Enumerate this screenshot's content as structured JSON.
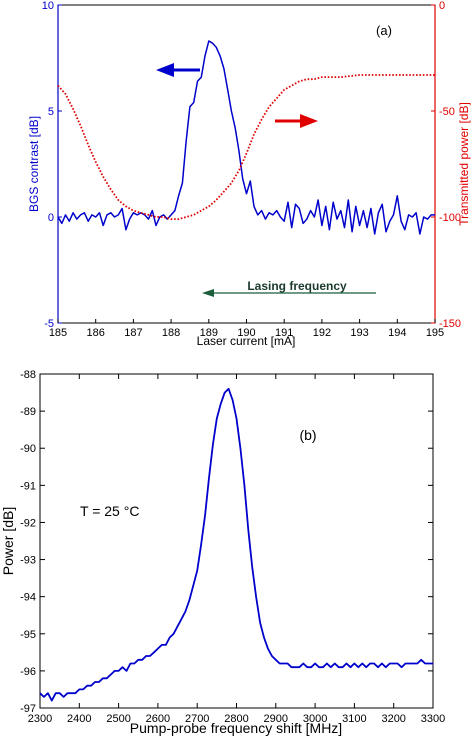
{
  "chart_data": [
    {
      "type": "line",
      "panel_label": "(a)",
      "xlabel": "Laser current [mA]",
      "xlim": [
        185,
        195
      ],
      "xticks": [
        "185",
        "186",
        "187",
        "188",
        "189",
        "190",
        "191",
        "192",
        "193",
        "194",
        "195"
      ],
      "ylabel_left": "BGS contrast [dB]",
      "ylim_left": [
        -5,
        10
      ],
      "yticks_left": [
        "-5",
        "0",
        "5",
        "10"
      ],
      "ylabel_right": "Transmitted power [dB]",
      "ylim_right": [
        -150,
        0
      ],
      "yticks_right": [
        "-150",
        "-100",
        "-50",
        "0"
      ],
      "annotation": "Lasing frequency",
      "colors": {
        "left": "#0000cc",
        "right": "#e00000",
        "lasing": "#1b5e3b"
      },
      "series": [
        {
          "axis": "left",
          "style": "solid",
          "x": [
            185.0,
            185.1,
            185.2,
            185.3,
            185.4,
            185.5,
            185.6,
            185.7,
            185.8,
            185.9,
            186.0,
            186.1,
            186.2,
            186.3,
            186.4,
            186.5,
            186.6,
            186.7,
            186.8,
            186.9,
            187.0,
            187.1,
            187.2,
            187.3,
            187.4,
            187.5,
            187.6,
            187.7,
            187.8,
            187.9,
            188.0,
            188.1,
            188.2,
            188.3,
            188.4,
            188.5,
            188.6,
            188.7,
            188.8,
            188.9,
            189.0,
            189.1,
            189.2,
            189.3,
            189.4,
            189.5,
            189.6,
            189.7,
            189.8,
            189.9,
            190.0,
            190.1,
            190.2,
            190.3,
            190.4,
            190.5,
            190.6,
            190.7,
            190.8,
            190.9,
            191.0,
            191.1,
            191.2,
            191.3,
            191.4,
            191.5,
            191.6,
            191.7,
            191.8,
            191.9,
            192.0,
            192.1,
            192.2,
            192.3,
            192.4,
            192.5,
            192.6,
            192.7,
            192.8,
            192.9,
            193.0,
            193.1,
            193.2,
            193.3,
            193.4,
            193.5,
            193.6,
            193.7,
            193.8,
            193.9,
            194.0,
            194.1,
            194.2,
            194.3,
            194.4,
            194.5,
            194.6,
            194.7,
            194.8,
            194.9,
            195.0
          ],
          "y": [
            0.0,
            -0.3,
            0.1,
            -0.2,
            0.2,
            -0.1,
            0.1,
            0.2,
            -0.2,
            0.1,
            0.0,
            0.2,
            -0.4,
            0.1,
            0.2,
            0.0,
            0.1,
            0.4,
            -0.6,
            -0.1,
            0.2,
            0.1,
            0.2,
            0.1,
            -0.1,
            0.3,
            -0.4,
            0.0,
            0.1,
            -0.1,
            0.1,
            0.3,
            1.0,
            1.6,
            3.6,
            5.2,
            5.4,
            6.4,
            6.6,
            7.6,
            8.3,
            8.2,
            8.0,
            7.6,
            7.0,
            6.0,
            5.0,
            4.2,
            3.1,
            1.8,
            1.1,
            1.7,
            0.5,
            0.1,
            0.3,
            -0.1,
            0.2,
            0.1,
            0.3,
            0.0,
            -0.2,
            0.7,
            -0.5,
            0.6,
            0.4,
            -0.3,
            -0.1,
            0.3,
            0.0,
            0.8,
            -0.4,
            0.5,
            -0.6,
            0.7,
            -0.1,
            0.3,
            -0.5,
            0.8,
            -0.7,
            0.5,
            -0.4,
            0.3,
            -0.5,
            0.4,
            -0.8,
            0.2,
            0.6,
            -0.7,
            -0.2,
            0.1,
            1.0,
            -0.2,
            -0.6,
            0.1,
            0.0,
            0.2,
            -0.8,
            0.0,
            -0.1,
            0.1,
            0.1
          ]
        },
        {
          "axis": "right",
          "style": "dotted",
          "x": [
            185.0,
            185.2,
            185.4,
            185.6,
            185.8,
            186.0,
            186.2,
            186.4,
            186.6,
            186.8,
            187.0,
            187.2,
            187.4,
            187.6,
            187.8,
            188.0,
            188.2,
            188.4,
            188.6,
            188.8,
            189.0,
            189.2,
            189.4,
            189.6,
            189.8,
            190.0,
            190.2,
            190.4,
            190.6,
            190.8,
            191.0,
            191.2,
            191.4,
            191.6,
            191.8,
            192.0,
            192.5,
            193.0,
            193.5,
            194.0,
            194.5,
            195.0
          ],
          "y": [
            -38,
            -42,
            -49,
            -57,
            -66,
            -74,
            -81,
            -87,
            -92,
            -95,
            -97,
            -98,
            -99,
            -100,
            -100,
            -101,
            -101,
            -100,
            -99,
            -97,
            -95,
            -92,
            -88,
            -84,
            -78,
            -70,
            -61,
            -54,
            -48,
            -44,
            -40,
            -38,
            -36,
            -35,
            -35,
            -34,
            -34,
            -33,
            -33,
            -33,
            -33,
            -33
          ]
        }
      ]
    },
    {
      "type": "line",
      "panel_label": "(b)",
      "annotation": "T = 25 °C",
      "xlabel": "Pump-probe frequency shift  [MHz]",
      "xlim": [
        2300,
        3300
      ],
      "xticks": [
        "2300",
        "2400",
        "2500",
        "2600",
        "2700",
        "2800",
        "2900",
        "3000",
        "3100",
        "3200",
        "3300"
      ],
      "ylabel": "Power  [dB]",
      "ylim": [
        -97,
        -88
      ],
      "yticks": [
        "-88",
        "-89",
        "-90",
        "-91",
        "-92",
        "-93",
        "-94",
        "-95",
        "-96",
        "-97"
      ],
      "colors": {
        "line": "#0000cc"
      },
      "series": [
        {
          "x": [
            2300,
            2310,
            2320,
            2330,
            2340,
            2350,
            2360,
            2370,
            2380,
            2390,
            2400,
            2410,
            2420,
            2430,
            2440,
            2450,
            2460,
            2470,
            2480,
            2490,
            2500,
            2510,
            2520,
            2530,
            2540,
            2550,
            2560,
            2570,
            2580,
            2590,
            2600,
            2610,
            2620,
            2630,
            2640,
            2650,
            2660,
            2670,
            2680,
            2690,
            2700,
            2710,
            2720,
            2730,
            2740,
            2750,
            2760,
            2770,
            2780,
            2790,
            2800,
            2810,
            2820,
            2830,
            2840,
            2850,
            2860,
            2870,
            2880,
            2890,
            2900,
            2910,
            2920,
            2930,
            2940,
            2950,
            2960,
            2970,
            2980,
            2990,
            3000,
            3010,
            3020,
            3030,
            3040,
            3050,
            3060,
            3070,
            3080,
            3090,
            3100,
            3110,
            3120,
            3130,
            3140,
            3150,
            3160,
            3170,
            3180,
            3190,
            3200,
            3210,
            3220,
            3230,
            3240,
            3250,
            3260,
            3270,
            3280,
            3290,
            3300
          ],
          "y": [
            -96.6,
            -96.7,
            -96.6,
            -96.8,
            -96.6,
            -96.6,
            -96.7,
            -96.6,
            -96.6,
            -96.6,
            -96.5,
            -96.5,
            -96.4,
            -96.4,
            -96.3,
            -96.3,
            -96.2,
            -96.2,
            -96.1,
            -96.0,
            -96.0,
            -95.9,
            -96.0,
            -95.8,
            -95.8,
            -95.7,
            -95.7,
            -95.6,
            -95.6,
            -95.5,
            -95.4,
            -95.3,
            -95.3,
            -95.1,
            -95.0,
            -94.8,
            -94.6,
            -94.4,
            -94.1,
            -93.7,
            -93.3,
            -92.6,
            -91.8,
            -90.8,
            -89.9,
            -89.2,
            -88.8,
            -88.5,
            -88.4,
            -88.7,
            -89.2,
            -90.0,
            -91.0,
            -92.2,
            -93.2,
            -94.0,
            -94.7,
            -95.1,
            -95.4,
            -95.6,
            -95.7,
            -95.8,
            -95.8,
            -95.8,
            -95.9,
            -95.9,
            -95.9,
            -95.8,
            -95.9,
            -95.9,
            -95.8,
            -95.9,
            -95.9,
            -95.8,
            -95.9,
            -95.8,
            -95.9,
            -95.9,
            -95.8,
            -95.9,
            -95.8,
            -95.9,
            -95.8,
            -95.9,
            -95.8,
            -95.8,
            -95.9,
            -95.8,
            -95.9,
            -95.8,
            -95.8,
            -95.8,
            -95.9,
            -95.8,
            -95.8,
            -95.8,
            -95.8,
            -95.7,
            -95.8,
            -95.8,
            -95.8
          ]
        }
      ]
    }
  ]
}
